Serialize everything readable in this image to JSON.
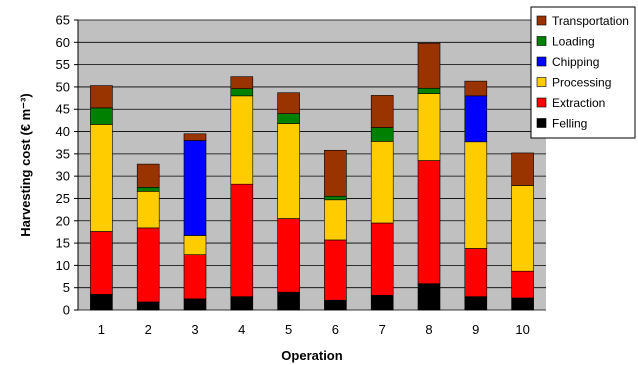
{
  "chart_data": {
    "type": "bar",
    "stacked": true,
    "xlabel": "Operation",
    "ylabel": "Harvesting cost (€ m⁻³)",
    "ylim": [
      0,
      65
    ],
    "yticks": [
      0,
      5,
      10,
      15,
      20,
      25,
      30,
      35,
      40,
      45,
      50,
      55,
      60,
      65
    ],
    "categories": [
      "1",
      "2",
      "3",
      "4",
      "5",
      "6",
      "7",
      "8",
      "9",
      "10"
    ],
    "grid": true,
    "legend_position": "top-right",
    "series": [
      {
        "name": "Felling",
        "color": "#000000",
        "values": [
          3.5,
          1.8,
          2.5,
          3.0,
          4.0,
          2.2,
          3.3,
          5.9,
          3.0,
          2.7
        ]
      },
      {
        "name": "Extraction",
        "color": "#ff0000",
        "values": [
          14.1,
          16.6,
          9.9,
          25.2,
          16.5,
          13.5,
          16.2,
          27.6,
          10.8,
          6.0
        ]
      },
      {
        "name": "Processing",
        "color": "#ffcc00",
        "values": [
          24.0,
          8.2,
          4.3,
          19.8,
          21.3,
          9.0,
          18.3,
          15.0,
          23.9,
          19.2
        ]
      },
      {
        "name": "Chipping",
        "color": "#0000ff",
        "values": [
          0,
          0,
          21.3,
          0,
          0,
          0,
          0,
          0,
          10.3,
          0
        ]
      },
      {
        "name": "Loading",
        "color": "#008000",
        "values": [
          3.7,
          0.9,
          0,
          1.6,
          2.2,
          0.8,
          3.1,
          1.2,
          0,
          0
        ]
      },
      {
        "name": "Transportation",
        "color": "#993300",
        "values": [
          5.0,
          5.2,
          1.5,
          2.7,
          4.7,
          10.3,
          7.2,
          10.1,
          3.3,
          7.3
        ]
      }
    ]
  }
}
